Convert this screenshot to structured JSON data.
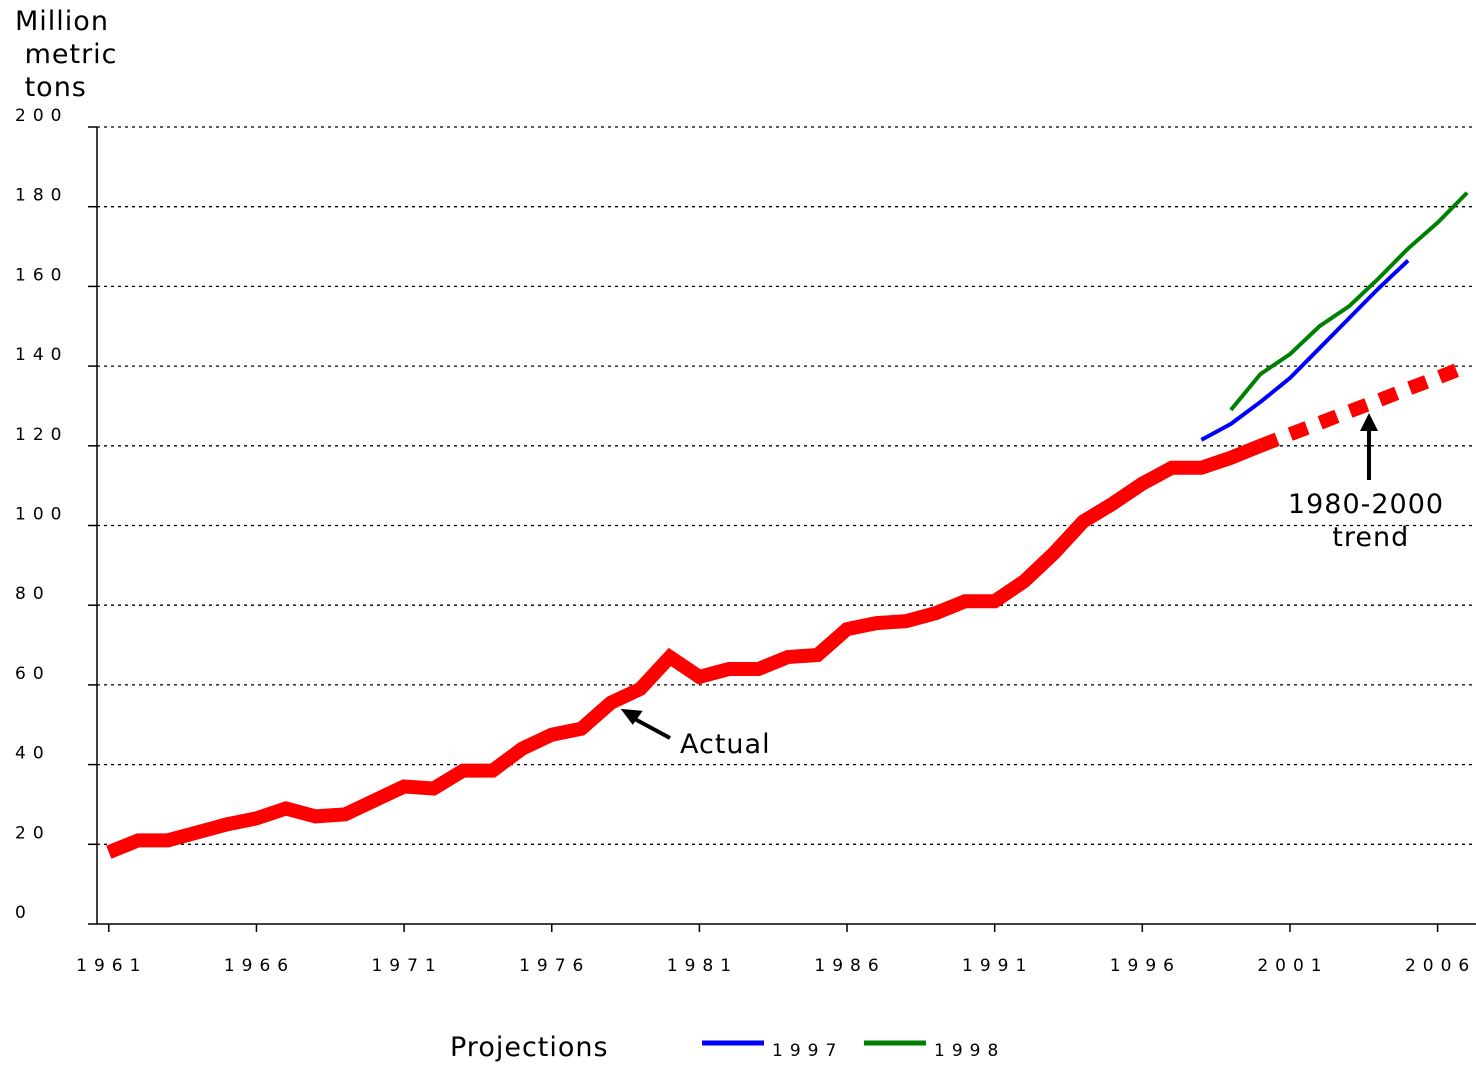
{
  "chart_data": {
    "type": "line",
    "y_label": "Million metric tons",
    "xlim": [
      1960.6,
      2007.3
    ],
    "xticks": [
      1961,
      1966,
      1971,
      1976,
      1981,
      1986,
      1991,
      1996,
      2001,
      2006
    ],
    "ylim": [
      0,
      200
    ],
    "yticks": [
      0,
      20,
      40,
      60,
      80,
      100,
      120,
      140,
      160,
      180,
      200
    ],
    "grid": true,
    "legend_title": "Projections",
    "series": [
      {
        "name": "Actual",
        "color": "#ff0000",
        "style": "solid",
        "width": 14,
        "in_legend": false,
        "x": [
          1961,
          1962,
          1963,
          1964,
          1965,
          1966,
          1967,
          1968,
          1969,
          1970,
          1971,
          1972,
          1973,
          1974,
          1975,
          1976,
          1977,
          1978,
          1979,
          1980,
          1981,
          1982,
          1983,
          1984,
          1985,
          1986,
          1987,
          1988,
          1989,
          1990,
          1991,
          1992,
          1993,
          1994,
          1995,
          1996,
          1997,
          1998,
          1999,
          2000
        ],
        "values": [
          18,
          21,
          21,
          23,
          25,
          26.5,
          29,
          27,
          27.5,
          31,
          34.5,
          34,
          38.5,
          38.5,
          44,
          47.5,
          49,
          55.5,
          59,
          67,
          62,
          64,
          64,
          67,
          67.5,
          74,
          75.5,
          76,
          78,
          81,
          81,
          86,
          93,
          101,
          105.5,
          110.5,
          114.5,
          114.5,
          117,
          120
        ]
      },
      {
        "name": "1980-2000 trend",
        "color": "#ff0000",
        "style": "dashed",
        "width": 14,
        "in_legend": false,
        "x": [
          2000,
          2001,
          2002,
          2003,
          2004,
          2005,
          2006,
          2007
        ],
        "values": [
          120,
          122.9,
          125.7,
          128.6,
          131.4,
          134.3,
          137.1,
          140
        ]
      },
      {
        "name": "1997",
        "color": "#0000ff",
        "style": "solid",
        "width": 4,
        "in_legend": true,
        "x": [
          1998,
          1999,
          2000,
          2001,
          2002,
          2003,
          2004,
          2005
        ],
        "values": [
          121.5,
          125.5,
          131,
          137,
          144.5,
          152,
          159.5,
          166.5
        ]
      },
      {
        "name": "1998",
        "color": "#008000",
        "style": "solid",
        "width": 4,
        "in_legend": true,
        "x": [
          1999,
          2000,
          2001,
          2002,
          2003,
          2004,
          2005,
          2006,
          2007
        ],
        "values": [
          129,
          138,
          143,
          150,
          155,
          162,
          169.5,
          176,
          183.5
        ]
      }
    ]
  }
}
